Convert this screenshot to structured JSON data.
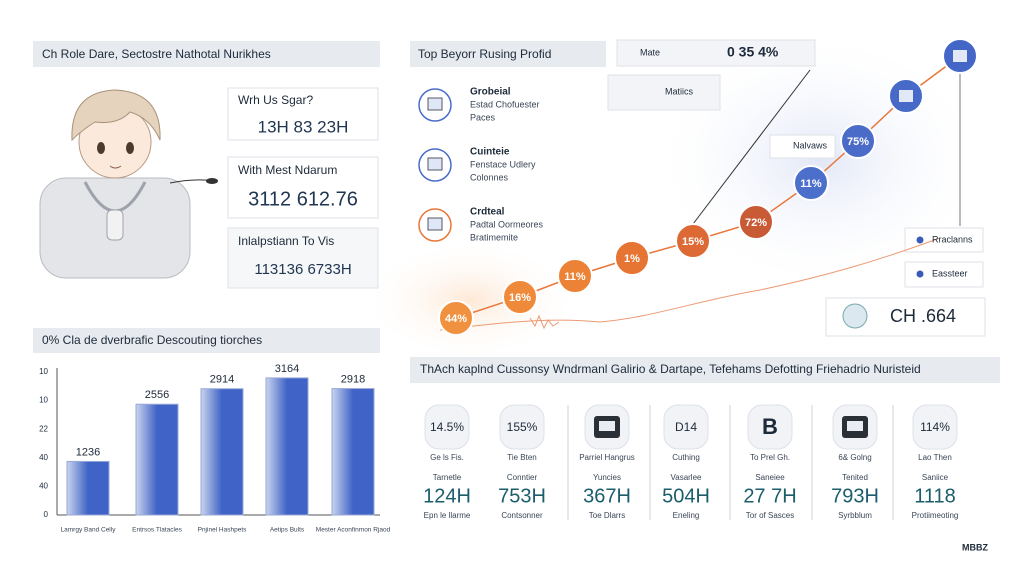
{
  "profile_panel": {
    "title": "Ch Role Dare, Sectostre Nathotal Nurikhes",
    "stats": [
      {
        "label": "Wrh Us Sgar?",
        "value": "13H 83 23H"
      },
      {
        "label": "With Mest Ndarum",
        "value": "3112 612.76"
      },
      {
        "label": "Inlalpstiann To Vis",
        "value": "113136 6733H"
      }
    ]
  },
  "bar_panel": {
    "title": "0% Cla de dverbrafic Descouting tiorches",
    "axis_labels": [
      "10",
      "10",
      "22",
      "40",
      "40",
      "0"
    ],
    "chart_data": {
      "type": "bar",
      "categories": [
        "Lamrgy Band Celly",
        "Entrsos Tlatacles",
        "Pnjinel Hashpets",
        "Aetips Bults",
        "Mester Aconfinmon Rjaod"
      ],
      "values": [
        1236,
        2556,
        2914,
        3164,
        2918
      ],
      "ylim": [
        0,
        3300
      ],
      "colors": [
        "#c9d4ee",
        "#3f63c6"
      ]
    }
  },
  "trend_panel": {
    "title": "Top Beyorr Rusing Profid",
    "header_tag": "Mate",
    "header_value": "0 35 4%",
    "legend": "Matiics",
    "items": [
      {
        "title": "Grobeial",
        "lines": [
          "Estad Chofuester",
          "Paces"
        ]
      },
      {
        "title": "Cuinteie",
        "lines": [
          "Fenstace Udlery",
          "Colonnes"
        ]
      },
      {
        "title": "Crdteal",
        "lines": [
          "Padtal Oormeores",
          "Bratimemite"
        ]
      }
    ],
    "points": [
      "44%",
      "16%",
      "11%",
      "1%",
      "15%",
      "72%",
      "11%",
      "75%"
    ],
    "callout": "Nalvaws",
    "tags": [
      "Rraclanns",
      "Eassteer"
    ],
    "total": "CH .664"
  },
  "metrics_panel": {
    "title": "ThAch kaplnd Cussonsy Wndrmanl Galirio & Dartape, Tefehams Defotting Friehadrio Nuristeid",
    "columns": [
      {
        "badge": "14.5%",
        "caption": "Ge ls Fis.",
        "label": "Tarnetle",
        "value": "124H",
        "sub": "Epn le llarme"
      },
      {
        "badge": "155%",
        "caption": "Tie Bten",
        "label": "Conntier",
        "value": "753H",
        "sub": "Contsonner"
      },
      {
        "caption": "Parriel Hangrus",
        "label": "Yuncies",
        "value": "367H",
        "sub": "Toe Dlarrs"
      },
      {
        "badge": "D14",
        "caption": "Cuthing",
        "label": "Vasarlee",
        "value": "504H",
        "sub": "Eneling"
      },
      {
        "badge": "B",
        "caption": "To Prel Gh.",
        "label": "Saneiee",
        "value": "27 7H",
        "sub": "Tor of Sasces"
      },
      {
        "caption": "6& Golng",
        "label": "Tenited",
        "value": "793H",
        "sub": "Syrbblum"
      },
      {
        "badge": "114%",
        "caption": "Lao Then",
        "label": "Saniice",
        "value": "1118",
        "sub": "Protiimeoting"
      }
    ]
  },
  "logo": "MBBZ"
}
